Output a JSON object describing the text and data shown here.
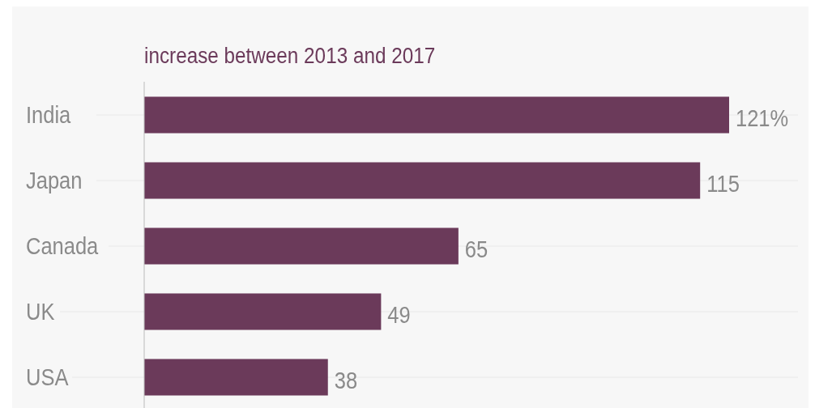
{
  "chart_data": {
    "type": "bar",
    "orientation": "horizontal",
    "title": "increase between 2013 and 2017",
    "categories": [
      "India",
      "Japan",
      "Canada",
      "UK",
      "USA"
    ],
    "values": [
      121,
      115,
      65,
      49,
      38
    ],
    "value_labels": [
      "121%",
      "115",
      "65",
      "49",
      "38"
    ],
    "color": "#6b3a5a",
    "grid": "y"
  }
}
